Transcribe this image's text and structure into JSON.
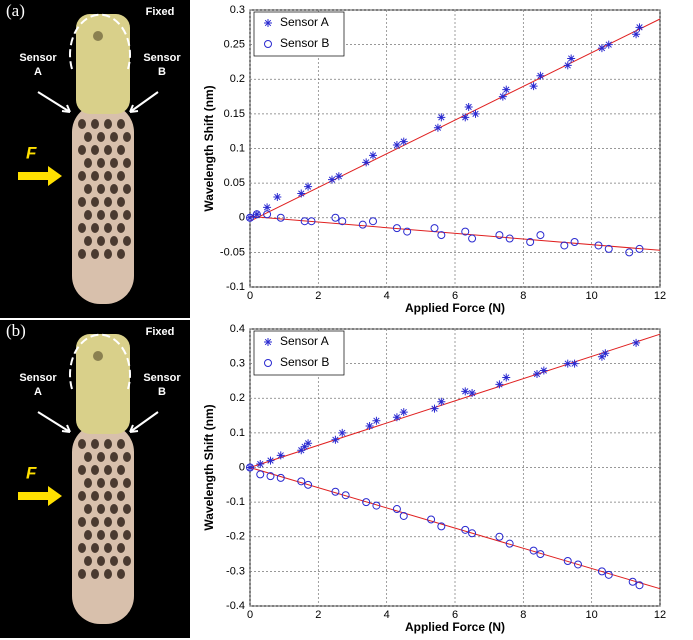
{
  "chart_data": [
    {
      "type": "scatter",
      "panel_label": "(a)",
      "annotations": [
        "Fixed",
        "Sensor",
        "A",
        "Sensor",
        "B",
        "F"
      ],
      "xlabel": "Applied Force (N)",
      "ylabel": "Wavelength Shift (nm)",
      "xlim": [
        0,
        12
      ],
      "xticks": [
        0,
        2,
        4,
        6,
        8,
        10,
        12
      ],
      "ylim": [
        -0.1,
        0.3
      ],
      "yticks": [
        -0.1,
        -0.05,
        0,
        0.05,
        0.1,
        0.15,
        0.2,
        0.25,
        0.3
      ],
      "grid": true,
      "legend": "upper-left",
      "series": [
        {
          "name": "Sensor A",
          "marker": "star",
          "color": "#2a2ad0",
          "x": [
            0,
            0.2,
            0.5,
            0.8,
            1.5,
            1.7,
            2.4,
            2.6,
            3.4,
            3.6,
            4.3,
            4.5,
            5.5,
            5.6,
            6.3,
            6.4,
            6.6,
            7.4,
            7.5,
            8.3,
            8.5,
            9.3,
            9.4,
            10.3,
            10.5,
            11.3,
            11.4
          ],
          "values": [
            0,
            0.005,
            0.015,
            0.03,
            0.035,
            0.045,
            0.055,
            0.06,
            0.08,
            0.09,
            0.105,
            0.11,
            0.13,
            0.145,
            0.145,
            0.16,
            0.15,
            0.175,
            0.185,
            0.19,
            0.205,
            0.22,
            0.23,
            0.245,
            0.25,
            0.265,
            0.275
          ]
        },
        {
          "name": "Sensor B",
          "marker": "circle",
          "color": "#2a2ad0",
          "x": [
            0,
            0.2,
            0.5,
            0.9,
            1.6,
            1.8,
            2.5,
            2.7,
            3.3,
            3.6,
            4.3,
            4.6,
            5.4,
            5.6,
            6.3,
            6.5,
            7.3,
            7.6,
            8.2,
            8.5,
            9.2,
            9.5,
            10.2,
            10.5,
            11.1,
            11.4
          ],
          "values": [
            0,
            0.005,
            0.005,
            0,
            -0.005,
            -0.005,
            0,
            -0.005,
            -0.01,
            -0.005,
            -0.015,
            -0.02,
            -0.015,
            -0.025,
            -0.02,
            -0.03,
            -0.025,
            -0.03,
            -0.035,
            -0.025,
            -0.04,
            -0.035,
            -0.04,
            -0.045,
            -0.05,
            -0.045
          ]
        }
      ],
      "fits": [
        {
          "color": "#e02020",
          "x": [
            0,
            12
          ],
          "values": [
            -0.005,
            0.287
          ]
        },
        {
          "color": "#e02020",
          "x": [
            0,
            12
          ],
          "values": [
            0.002,
            -0.047
          ]
        }
      ]
    },
    {
      "type": "scatter",
      "panel_label": "(b)",
      "annotations": [
        "Fixed",
        "Sensor",
        "A",
        "Sensor",
        "B",
        "F"
      ],
      "xlabel": "Applied Force (N)",
      "ylabel": "Wavelength Shift (nm)",
      "xlim": [
        0,
        12
      ],
      "xticks": [
        0,
        2,
        4,
        6,
        8,
        10,
        12
      ],
      "ylim": [
        -0.4,
        0.4
      ],
      "yticks": [
        -0.4,
        -0.3,
        -0.2,
        -0.1,
        0,
        0.1,
        0.2,
        0.3,
        0.4
      ],
      "grid": true,
      "legend": "upper-left",
      "series": [
        {
          "name": "Sensor A",
          "marker": "star",
          "color": "#2a2ad0",
          "x": [
            0,
            0.3,
            0.6,
            0.9,
            1.5,
            1.6,
            1.7,
            2.5,
            2.7,
            3.5,
            3.7,
            4.3,
            4.5,
            5.4,
            5.6,
            6.3,
            6.5,
            7.3,
            7.5,
            8.4,
            8.6,
            9.3,
            9.5,
            10.3,
            10.4,
            11.3
          ],
          "values": [
            0,
            0.01,
            0.02,
            0.035,
            0.05,
            0.06,
            0.07,
            0.08,
            0.1,
            0.12,
            0.135,
            0.145,
            0.16,
            0.17,
            0.19,
            0.22,
            0.215,
            0.24,
            0.26,
            0.27,
            0.28,
            0.3,
            0.3,
            0.32,
            0.33,
            0.36
          ]
        },
        {
          "name": "Sensor B",
          "marker": "circle",
          "color": "#2a2ad0",
          "x": [
            0,
            0.3,
            0.6,
            0.9,
            1.5,
            1.7,
            2.5,
            2.8,
            3.4,
            3.7,
            4.3,
            4.5,
            5.3,
            5.6,
            6.3,
            6.5,
            7.3,
            7.6,
            8.3,
            8.5,
            9.3,
            9.6,
            10.3,
            10.5,
            11.2,
            11.4
          ],
          "values": [
            0,
            -0.02,
            -0.025,
            -0.03,
            -0.04,
            -0.05,
            -0.07,
            -0.08,
            -0.1,
            -0.11,
            -0.12,
            -0.14,
            -0.15,
            -0.17,
            -0.18,
            -0.19,
            -0.2,
            -0.22,
            -0.24,
            -0.25,
            -0.27,
            -0.28,
            -0.3,
            -0.31,
            -0.33,
            -0.34
          ]
        }
      ],
      "fits": [
        {
          "color": "#e02020",
          "x": [
            0,
            12
          ],
          "values": [
            0,
            0.385
          ]
        },
        {
          "color": "#e02020",
          "x": [
            0,
            12
          ],
          "values": [
            0,
            -0.35
          ]
        }
      ]
    }
  ]
}
